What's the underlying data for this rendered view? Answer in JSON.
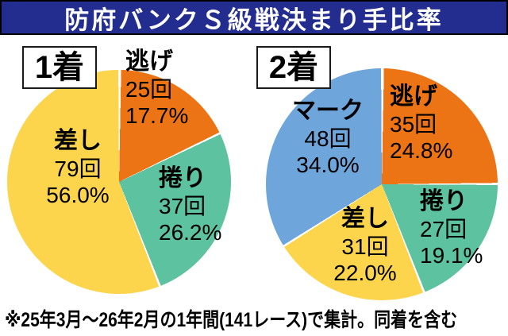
{
  "header": {
    "title": "防府バンクＳ級戦決まり手比率"
  },
  "footer": {
    "note": "※25年3月〜26年2月の1年間(141レース)で集計。同着を含む"
  },
  "colors": {
    "header_bg": "#232d8f",
    "nige_orange": "#ed7414",
    "makuri_teal": "#5cc2a0",
    "sashi_yellow": "#fcd54c",
    "mark_blue": "#6ea5db",
    "slice_gap": "#ffffff"
  },
  "chart_data": [
    {
      "type": "pie",
      "title": "1着",
      "legend_position": "on-chart",
      "slices": [
        {
          "label": "逃げ",
          "count": "25回",
          "percent": "17.7%",
          "value": 17.7,
          "color": "#ed7414"
        },
        {
          "label": "捲り",
          "count": "37回",
          "percent": "26.2%",
          "value": 26.2,
          "color": "#5cc2a0"
        },
        {
          "label": "差し",
          "count": "79回",
          "percent": "56.0%",
          "value": 56.0,
          "color": "#fcd54c"
        }
      ]
    },
    {
      "type": "pie",
      "title": "2着",
      "legend_position": "on-chart",
      "slices": [
        {
          "label": "逃げ",
          "count": "35回",
          "percent": "24.8%",
          "value": 24.8,
          "color": "#ed7414"
        },
        {
          "label": "捲り",
          "count": "27回",
          "percent": "19.1%",
          "value": 19.1,
          "color": "#5cc2a0"
        },
        {
          "label": "差し",
          "count": "31回",
          "percent": "22.0%",
          "value": 22.0,
          "color": "#fcd54c"
        },
        {
          "label": "マーク",
          "count": "48回",
          "percent": "34.0%",
          "value": 34.0,
          "color": "#6ea5db"
        }
      ]
    }
  ]
}
